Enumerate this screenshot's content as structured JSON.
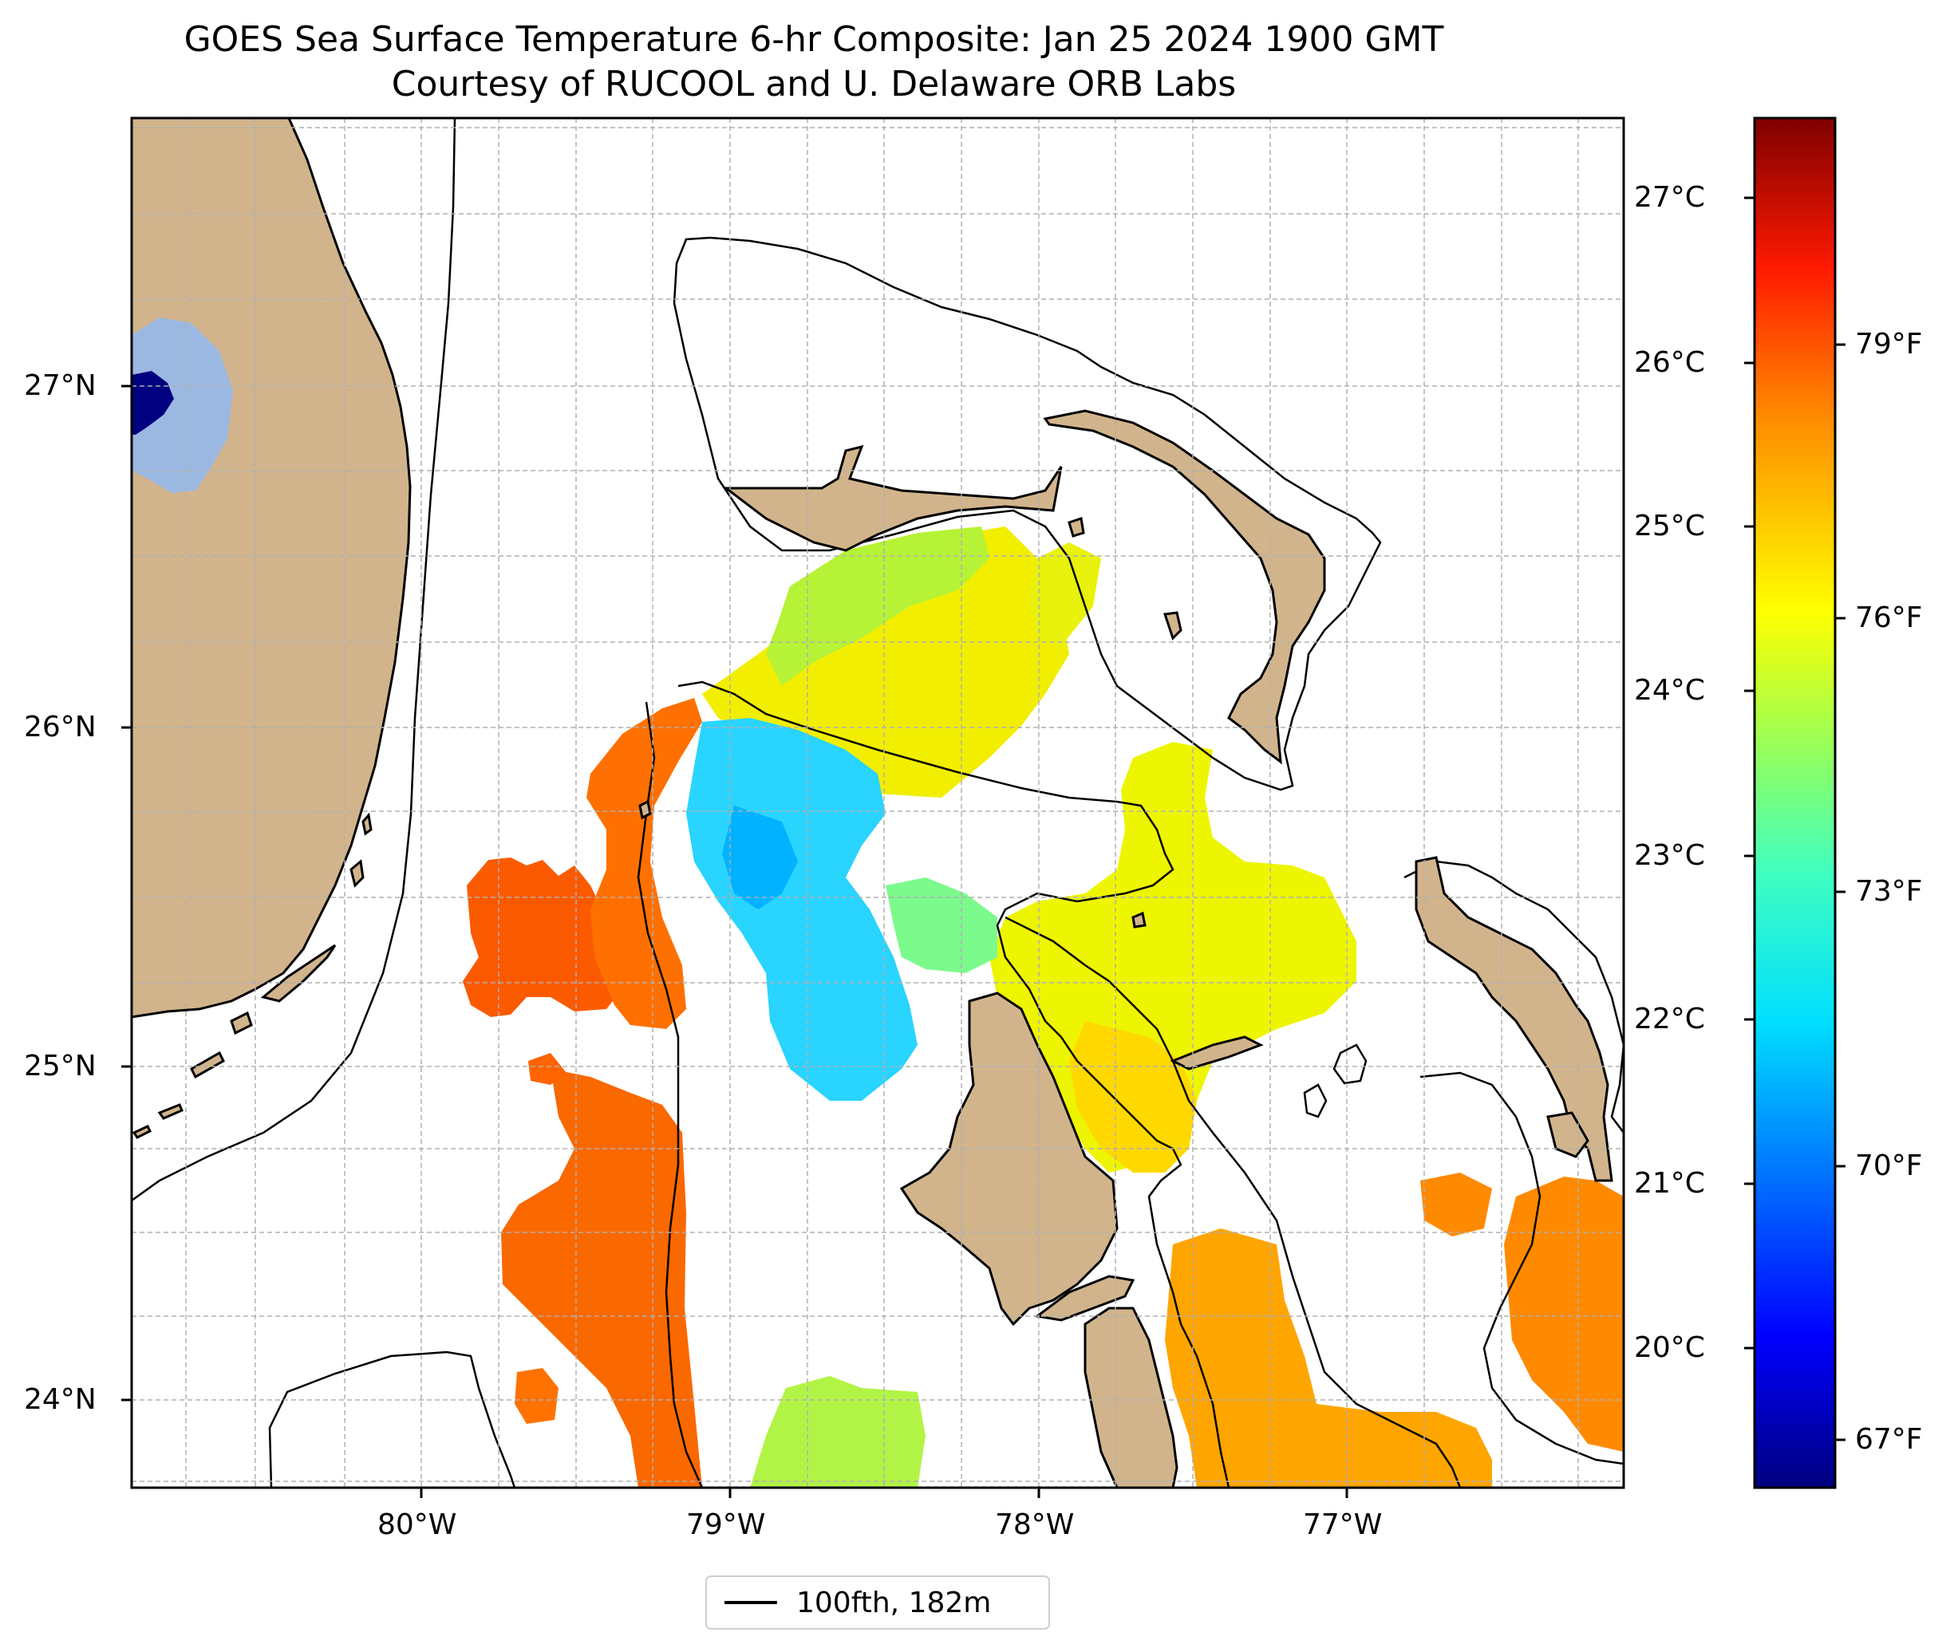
{
  "title": {
    "line1": "GOES Sea Surface Temperature 6-hr Composite: Jan 25 2024 1900 GMT",
    "line2": "Courtesy of RUCOOL and U. Delaware ORB Labs"
  },
  "axes": {
    "lon_labels": [
      "80°W",
      "79°W",
      "78°W",
      "77°W"
    ],
    "lat_labels": [
      "27°N",
      "26°N",
      "25°N",
      "24°N"
    ],
    "grid": true
  },
  "colorbar": {
    "celsius_labels": [
      "27°C",
      "26°C",
      "25°C",
      "24°C",
      "23°C",
      "22°C",
      "21°C",
      "20°C"
    ],
    "fahrenheit_labels": [
      "79°F",
      "76°F",
      "73°F",
      "70°F",
      "67°F"
    ],
    "colormap": "jet",
    "colors": [
      "#00007f",
      "#0000ff",
      "#007fff",
      "#00ffff",
      "#7fff7f",
      "#ffff00",
      "#ff7f00",
      "#ff0000",
      "#7f0000"
    ]
  },
  "legend": {
    "label": "100fth, 182m"
  },
  "colors": {
    "land": "#d2b48c",
    "lake": "#9bb8e2",
    "lake_deep": "#000080",
    "sst_warm_orange": "#ff6a00",
    "sst_amber": "#ffaa00",
    "sst_yellow": "#f4f000",
    "sst_lime": "#a8f545",
    "sst_cyan": "#00d7ff"
  }
}
